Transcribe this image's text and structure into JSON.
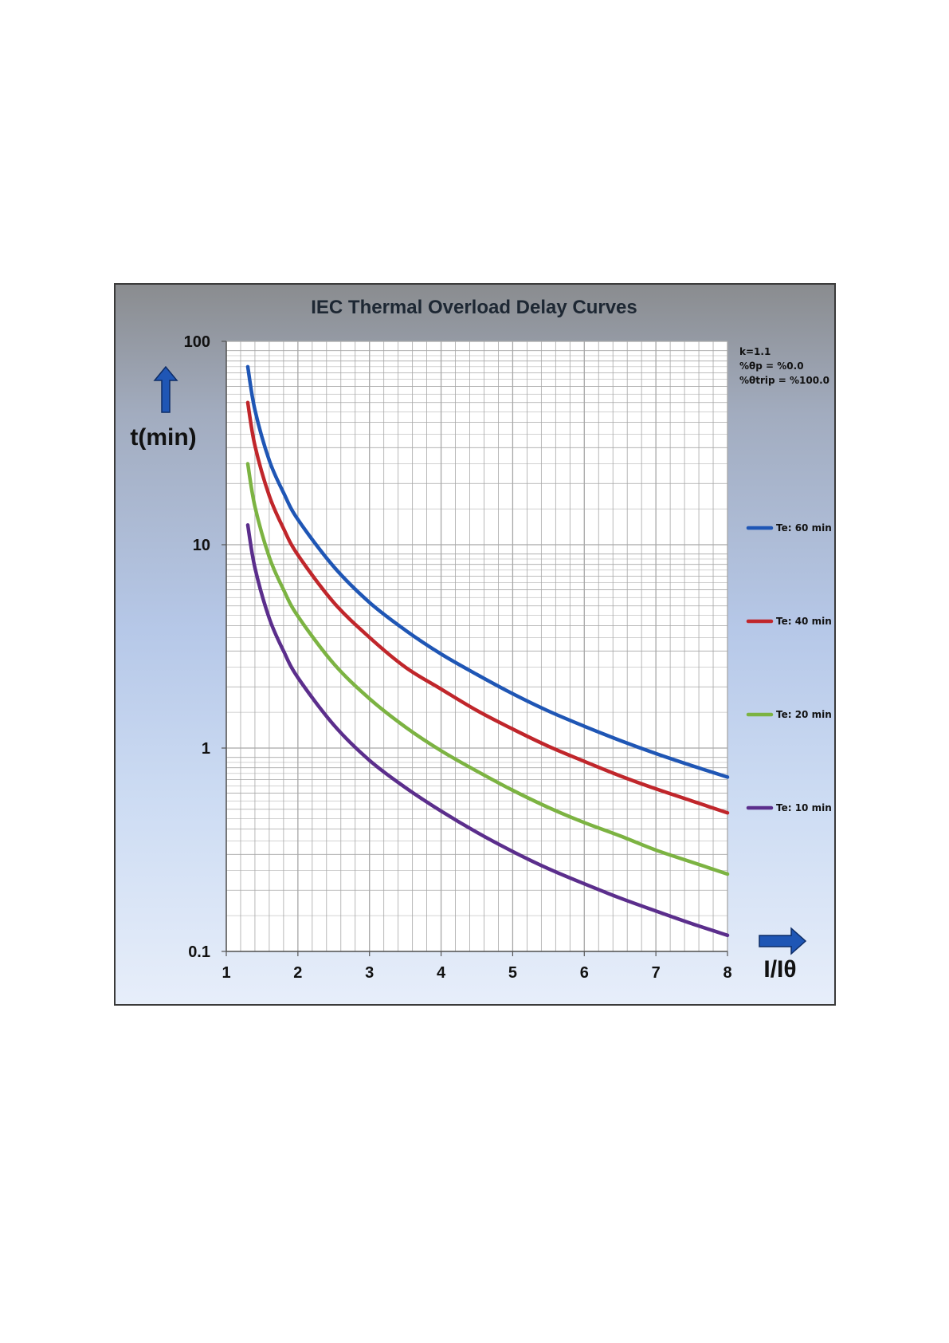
{
  "chart_data": {
    "type": "line",
    "title": "IEC Thermal Overload Delay Curves",
    "xlabel": "I/Iθ",
    "ylabel": "t(min)",
    "xlim": [
      1,
      8
    ],
    "ylim": [
      0.1,
      100
    ],
    "yscale": "log",
    "x_ticks": [
      "1",
      "2",
      "3",
      "4",
      "5",
      "6",
      "7",
      "8"
    ],
    "y_ticks": [
      "0.1",
      "1",
      "10",
      "100"
    ],
    "grid": true,
    "legend_position": "right",
    "parameters": [
      "k=1.1",
      "%θp = %0.0",
      "%θtrip = %100.0"
    ],
    "x": [
      1.3,
      1.4,
      1.6,
      1.8,
      2,
      2.5,
      3,
      3.5,
      4,
      4.5,
      5,
      5.5,
      6,
      6.5,
      7,
      7.5,
      8
    ],
    "series": [
      {
        "name": "Te: 60 min",
        "color": "#1f56b5",
        "values": [
          75,
          46,
          26,
          18,
          13.3,
          7.8,
          5.2,
          3.8,
          2.9,
          2.3,
          1.85,
          1.52,
          1.28,
          1.09,
          0.94,
          0.82,
          0.72
        ]
      },
      {
        "name": "Te: 40 min",
        "color": "#c0262b",
        "values": [
          50,
          30.7,
          17.4,
          12,
          8.9,
          5.2,
          3.5,
          2.5,
          1.95,
          1.53,
          1.24,
          1.02,
          0.86,
          0.73,
          0.63,
          0.55,
          0.48
        ]
      },
      {
        "name": "Te: 20 min",
        "color": "#7cb342",
        "values": [
          25,
          15.4,
          8.7,
          6,
          4.45,
          2.6,
          1.75,
          1.27,
          0.97,
          0.77,
          0.62,
          0.51,
          0.43,
          0.37,
          0.315,
          0.275,
          0.24
        ]
      },
      {
        "name": "Te: 10 min",
        "color": "#5b2e8c",
        "values": [
          12.5,
          7.7,
          4.35,
          3,
          2.22,
          1.3,
          0.87,
          0.64,
          0.49,
          0.385,
          0.31,
          0.255,
          0.215,
          0.183,
          0.158,
          0.137,
          0.12
        ]
      }
    ]
  },
  "colors": {
    "arrow": "#1f56b5",
    "grid": "#a7a7a7",
    "plot_background": "#ffffff"
  },
  "icons": {
    "y_arrow": "arrow-up-icon",
    "x_arrow": "arrow-right-icon"
  }
}
